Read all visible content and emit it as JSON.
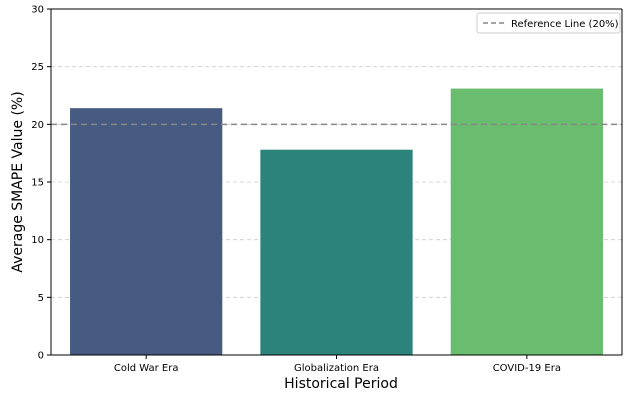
{
  "chart_data": {
    "type": "bar",
    "categories": [
      "Cold War Era",
      "Globalization Era",
      "COVID-19 Era"
    ],
    "values": [
      21.4,
      17.8,
      23.1
    ],
    "colors": [
      "#475a82",
      "#2b837c",
      "#6abc6e"
    ],
    "xlabel": "Historical Period",
    "ylabel": "Average SMAPE Value (%)",
    "ylim": [
      0,
      30
    ],
    "yticks": [
      0,
      5,
      10,
      15,
      20,
      25,
      30
    ],
    "grid": "horizontal dashed",
    "reference_line": {
      "value": 20,
      "label": "Reference Line (20%)",
      "color": "#888888",
      "style": "dashed"
    },
    "legend_position": "top-right"
  }
}
